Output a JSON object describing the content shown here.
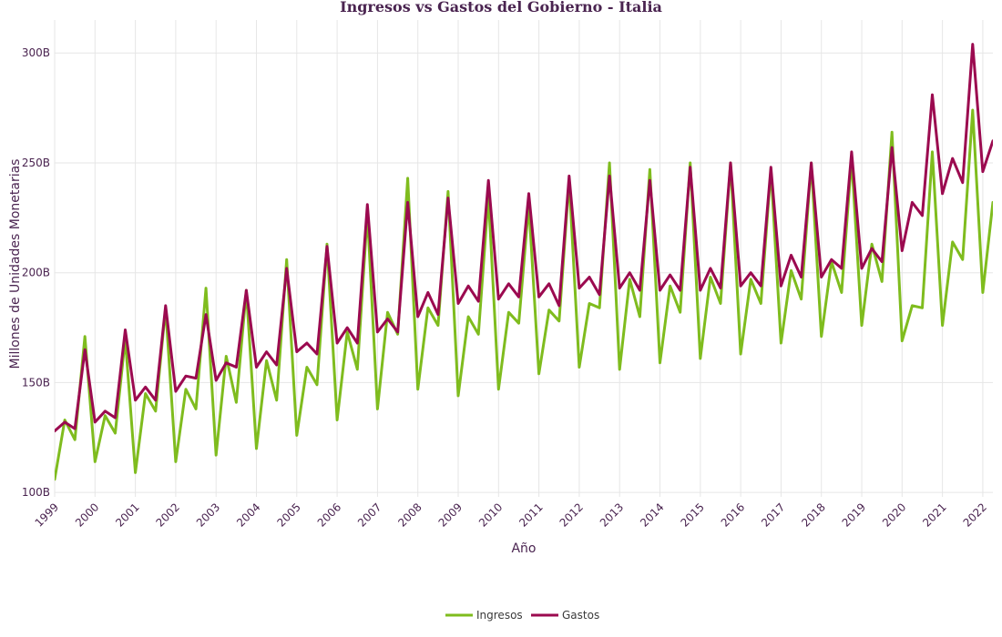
{
  "chart_data": {
    "type": "line",
    "title": "Ingresos vs Gastos del Gobierno - Italia",
    "xlabel": "Año",
    "ylabel": "Millones de Unidades Monetarias",
    "x_ticks": [
      "1999",
      "2000",
      "2001",
      "2002",
      "2003",
      "2004",
      "2005",
      "2006",
      "2007",
      "2008",
      "2009",
      "2010",
      "2011",
      "2012",
      "2013",
      "2014",
      "2015",
      "2016",
      "2017",
      "2018",
      "2019",
      "2020",
      "2021",
      "2022"
    ],
    "y_ticks": [
      100,
      150,
      200,
      250,
      300
    ],
    "y_tick_suffix": "B",
    "xlim": [
      1999.0,
      2022.25
    ],
    "ylim": [
      98,
      315
    ],
    "grid": true,
    "legend_position": "bottom-center",
    "colors": {
      "Ingresos": "#7fbc1e",
      "Gastos": "#9b0a4f"
    },
    "series": [
      {
        "name": "Ingresos",
        "x_start": 1999.0,
        "x_step": 0.25,
        "values": [
          106,
          133,
          124,
          171,
          114,
          135,
          127,
          170,
          109,
          145,
          137,
          184,
          114,
          147,
          138,
          193,
          117,
          162,
          141,
          192,
          120,
          160,
          142,
          206,
          126,
          157,
          149,
          213,
          133,
          173,
          156,
          227,
          138,
          182,
          172,
          243,
          147,
          184,
          176,
          237,
          144,
          180,
          172,
          235,
          147,
          182,
          177,
          231,
          154,
          183,
          178,
          242,
          157,
          186,
          184,
          250,
          156,
          197,
          180,
          247,
          159,
          194,
          182,
          250,
          161,
          198,
          186,
          250,
          163,
          197,
          186,
          247,
          168,
          201,
          188,
          250,
          171,
          205,
          191,
          252,
          176,
          213,
          196,
          264,
          169,
          185,
          184,
          255,
          176,
          214,
          206,
          274,
          191,
          232
        ]
      },
      {
        "name": "Gastos",
        "x_start": 1999.0,
        "x_step": 0.25,
        "values": [
          128,
          132,
          129,
          165,
          132,
          137,
          134,
          174,
          142,
          148,
          142,
          185,
          146,
          153,
          152,
          181,
          151,
          159,
          157,
          192,
          157,
          164,
          158,
          202,
          164,
          168,
          163,
          212,
          168,
          175,
          168,
          231,
          173,
          179,
          173,
          232,
          180,
          191,
          181,
          234,
          186,
          194,
          187,
          242,
          188,
          195,
          189,
          236,
          189,
          195,
          185,
          244,
          193,
          198,
          190,
          244,
          193,
          200,
          192,
          242,
          192,
          199,
          192,
          248,
          192,
          202,
          193,
          250,
          194,
          200,
          194,
          248,
          194,
          208,
          198,
          250,
          198,
          206,
          202,
          255,
          202,
          211,
          205,
          257,
          210,
          232,
          226,
          281,
          236,
          252,
          241,
          304,
          246,
          260
        ]
      }
    ]
  }
}
